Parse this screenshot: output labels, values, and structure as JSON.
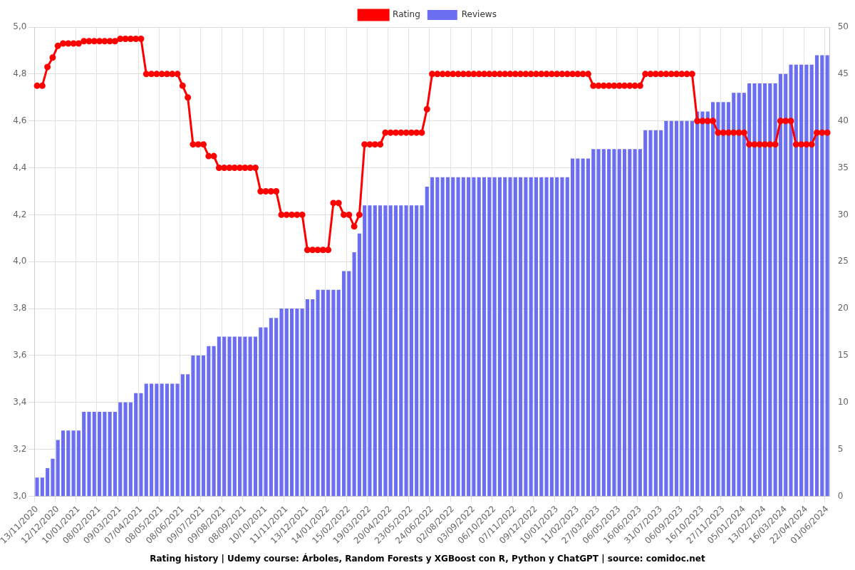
{
  "chart_data": {
    "type": "bar",
    "title": "Rating history | Udemy course: Árboles, Random Forests y XGBoost con R, Python y ChatGPT | source: comidoc.net",
    "legend": "top",
    "grid": true,
    "categories": [
      "13/11/2020",
      null,
      null,
      null,
      "12/12/2020",
      null,
      null,
      null,
      "10/01/2021",
      null,
      null,
      null,
      "08/02/2021",
      null,
      null,
      null,
      "09/03/2021",
      null,
      null,
      null,
      "07/04/2021",
      null,
      null,
      null,
      "08/05/2021",
      null,
      null,
      null,
      "08/06/2021",
      null,
      null,
      null,
      "09/07/2021",
      null,
      null,
      null,
      "09/08/2021",
      null,
      null,
      null,
      "08/09/2021",
      null,
      null,
      null,
      "10/10/2021",
      null,
      null,
      null,
      "11/11/2021",
      null,
      null,
      null,
      "13/12/2021",
      null,
      null,
      null,
      "14/01/2022",
      null,
      null,
      null,
      "15/02/2022",
      null,
      null,
      null,
      "19/03/2022",
      null,
      null,
      null,
      "20/04/2022",
      null,
      null,
      null,
      "23/05/2022",
      null,
      null,
      null,
      "24/06/2022",
      null,
      null,
      null,
      "02/08/2022",
      null,
      null,
      null,
      "03/09/2022",
      null,
      null,
      null,
      "06/10/2022",
      null,
      null,
      null,
      "07/11/2022",
      null,
      null,
      null,
      "09/12/2022",
      null,
      null,
      null,
      "10/01/2023",
      null,
      null,
      null,
      "11/02/2023",
      null,
      null,
      null,
      "27/03/2023",
      null,
      null,
      null,
      "06/05/2023",
      null,
      null,
      null,
      "16/06/2023",
      null,
      null,
      null,
      "31/07/2023",
      null,
      null,
      null,
      "06/09/2023",
      null,
      null,
      null,
      "16/10/2023",
      null,
      null,
      null,
      "27/11/2023",
      null,
      null,
      null,
      "05/01/2024",
      null,
      null,
      null,
      "13/02/2024",
      null,
      null,
      null,
      "16/03/2024",
      null,
      null,
      null,
      "22/04/2024",
      null,
      null,
      null,
      "01/06/2024"
    ],
    "series": [
      {
        "name": "Rating",
        "type": "line",
        "color": "#ff0000",
        "marker": "circle",
        "axis": "y",
        "values": [
          4.75,
          4.75,
          4.83,
          4.87,
          4.92,
          4.93,
          4.93,
          4.93,
          4.93,
          4.94,
          4.94,
          4.94,
          4.94,
          4.94,
          4.94,
          4.94,
          4.95,
          4.95,
          4.95,
          4.95,
          4.95,
          4.8,
          4.8,
          4.8,
          4.8,
          4.8,
          4.8,
          4.8,
          4.75,
          4.7,
          4.5,
          4.5,
          4.5,
          4.45,
          4.45,
          4.4,
          4.4,
          4.4,
          4.4,
          4.4,
          4.4,
          4.4,
          4.4,
          4.3,
          4.3,
          4.3,
          4.3,
          4.2,
          4.2,
          4.2,
          4.2,
          4.2,
          4.05,
          4.05,
          4.05,
          4.05,
          4.05,
          4.25,
          4.25,
          4.2,
          4.2,
          4.15,
          4.2,
          4.5,
          4.5,
          4.5,
          4.5,
          4.55,
          4.55,
          4.55,
          4.55,
          4.55,
          4.55,
          4.55,
          4.55,
          4.65,
          4.8,
          4.8,
          4.8,
          4.8,
          4.8,
          4.8,
          4.8,
          4.8,
          4.8,
          4.8,
          4.8,
          4.8,
          4.8,
          4.8,
          4.8,
          4.8,
          4.8,
          4.8,
          4.8,
          4.8,
          4.8,
          4.8,
          4.8,
          4.8,
          4.8,
          4.8,
          4.8,
          4.8,
          4.8,
          4.8,
          4.8,
          4.75,
          4.75,
          4.75,
          4.75,
          4.75,
          4.75,
          4.75,
          4.75,
          4.75,
          4.75,
          4.8,
          4.8,
          4.8,
          4.8,
          4.8,
          4.8,
          4.8,
          4.8,
          4.8,
          4.8,
          4.6,
          4.6,
          4.6,
          4.6,
          4.55,
          4.55,
          4.55,
          4.55,
          4.55,
          4.55,
          4.5,
          4.5,
          4.5,
          4.5,
          4.5,
          4.5,
          4.6,
          4.6,
          4.6,
          4.5,
          4.5,
          4.5,
          4.5,
          4.55,
          4.55,
          4.55
        ]
      },
      {
        "name": "Reviews",
        "type": "bar",
        "color": "#6b6ef0",
        "axis": "y2",
        "values": [
          2,
          2,
          3,
          4,
          6,
          7,
          7,
          7,
          7,
          9,
          9,
          9,
          9,
          9,
          9,
          9,
          10,
          10,
          10,
          11,
          11,
          12,
          12,
          12,
          12,
          12,
          12,
          12,
          13,
          13,
          15,
          15,
          15,
          16,
          16,
          17,
          17,
          17,
          17,
          17,
          17,
          17,
          17,
          18,
          18,
          19,
          19,
          20,
          20,
          20,
          20,
          20,
          21,
          21,
          22,
          22,
          22,
          22,
          22,
          24,
          24,
          26,
          28,
          31,
          31,
          31,
          31,
          31,
          31,
          31,
          31,
          31,
          31,
          31,
          31,
          33,
          34,
          34,
          34,
          34,
          34,
          34,
          34,
          34,
          34,
          34,
          34,
          34,
          34,
          34,
          34,
          34,
          34,
          34,
          34,
          34,
          34,
          34,
          34,
          34,
          34,
          34,
          34,
          36,
          36,
          36,
          36,
          37,
          37,
          37,
          37,
          37,
          37,
          37,
          37,
          37,
          37,
          39,
          39,
          39,
          39,
          40,
          40,
          40,
          40,
          40,
          40,
          41,
          41,
          41,
          42,
          42,
          42,
          42,
          43,
          43,
          43,
          44,
          44,
          44,
          44,
          44,
          44,
          45,
          45,
          46,
          46,
          46,
          46,
          46,
          47,
          47,
          47
        ]
      }
    ],
    "ylim": [
      3.0,
      5.0
    ],
    "yticks": [
      {
        "value": 3.0,
        "label": "3,0"
      },
      {
        "value": 3.2,
        "label": "3,2"
      },
      {
        "value": 3.4,
        "label": "3,4"
      },
      {
        "value": 3.6,
        "label": "3,6"
      },
      {
        "value": 3.8,
        "label": "3,8"
      },
      {
        "value": 4.0,
        "label": "4,0"
      },
      {
        "value": 4.2,
        "label": "4,2"
      },
      {
        "value": 4.4,
        "label": "4,4"
      },
      {
        "value": 4.6,
        "label": "4,6"
      },
      {
        "value": 4.8,
        "label": "4,8"
      },
      {
        "value": 5.0,
        "label": "5,0"
      }
    ],
    "y2lim": [
      0,
      50
    ],
    "y2ticks": [
      0,
      5,
      10,
      15,
      20,
      25,
      30,
      35,
      40,
      45,
      50
    ]
  }
}
